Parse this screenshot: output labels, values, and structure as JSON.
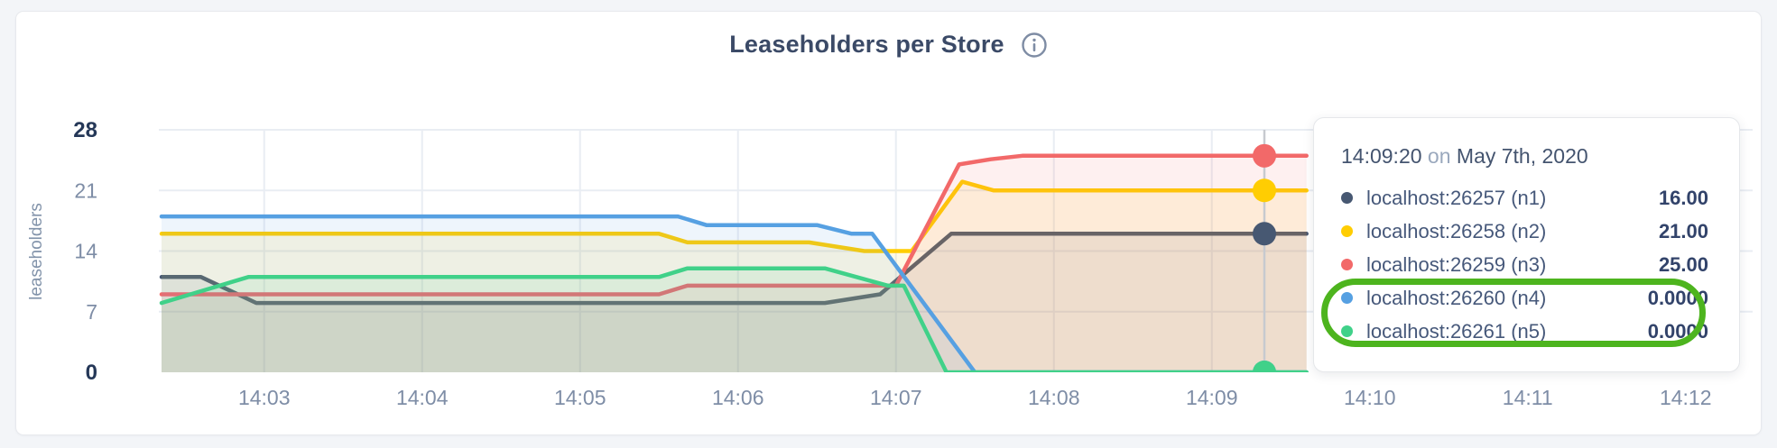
{
  "chart": {
    "title": "Leaseholders per Store",
    "info_icon": "info-circle"
  },
  "tooltip": {
    "time": "14:09:20",
    "on_word": "on",
    "date": "May 7th, 2020",
    "rows": [
      {
        "label": "localhost:26257 (n1)",
        "value": "16.00",
        "color": "#475872"
      },
      {
        "label": "localhost:26258 (n2)",
        "value": "21.00",
        "color": "#ffcd02"
      },
      {
        "label": "localhost:26259 (n3)",
        "value": "25.00",
        "color": "#f26969"
      },
      {
        "label": "localhost:26260 (n4)",
        "value": "0.0000",
        "color": "#56a0e2"
      },
      {
        "label": "localhost:26261 (n5)",
        "value": "0.0000",
        "color": "#40d189"
      }
    ],
    "annotation_color": "#4db41e"
  },
  "chart_data": {
    "type": "area",
    "title": "Leaseholders per Store",
    "ylabel": "leaseholders",
    "xlabel": "",
    "ylim": [
      0,
      28
    ],
    "y_ticks": [
      0,
      7,
      14,
      21,
      28
    ],
    "y_ticks_emphasized": [
      0,
      28
    ],
    "x_tick_labels": [
      "14:03",
      "14:04",
      "14:05",
      "14:06",
      "14:07",
      "14:08",
      "14:09",
      "14:10",
      "14:11",
      "14:12"
    ],
    "x_tick_minutes": [
      3,
      4,
      5,
      6,
      7,
      8,
      9,
      10,
      11,
      12
    ],
    "x_range_minutes": [
      2.333,
      12.42
    ],
    "hover_minute": 9.333,
    "grid": true,
    "legend_position": "tooltip-right",
    "colors": {
      "grid": "#e9edf3",
      "hover_line": "#c7cacf"
    },
    "series": [
      {
        "name": "localhost:26257 (n1)",
        "color": "#475872",
        "hover_value": 16,
        "points": [
          [
            2.35,
            11
          ],
          [
            2.6,
            11
          ],
          [
            2.95,
            8
          ],
          [
            6.55,
            8
          ],
          [
            6.9,
            9
          ],
          [
            7.35,
            16
          ],
          [
            9.6,
            16
          ]
        ]
      },
      {
        "name": "localhost:26258 (n2)",
        "color": "#ffcd02",
        "hover_value": 21,
        "points": [
          [
            2.35,
            16
          ],
          [
            5.5,
            16
          ],
          [
            5.68,
            15
          ],
          [
            6.45,
            15
          ],
          [
            6.8,
            14
          ],
          [
            7.1,
            14
          ],
          [
            7.42,
            22
          ],
          [
            7.62,
            21
          ],
          [
            9.6,
            21
          ]
        ]
      },
      {
        "name": "localhost:26259 (n3)",
        "color": "#f26969",
        "hover_value": 25,
        "points": [
          [
            2.35,
            9
          ],
          [
            5.5,
            9
          ],
          [
            5.68,
            10
          ],
          [
            7.0,
            10
          ],
          [
            7.4,
            24
          ],
          [
            7.6,
            24.6
          ],
          [
            7.8,
            25
          ],
          [
            9.6,
            25
          ]
        ]
      },
      {
        "name": "localhost:26260 (n4)",
        "color": "#56a0e2",
        "hover_value": 0,
        "points": [
          [
            2.35,
            18
          ],
          [
            5.62,
            18
          ],
          [
            5.8,
            17
          ],
          [
            6.5,
            17
          ],
          [
            6.72,
            16
          ],
          [
            6.85,
            16
          ],
          [
            7.5,
            0
          ],
          [
            9.6,
            0
          ]
        ]
      },
      {
        "name": "localhost:26261 (n5)",
        "color": "#40d189",
        "hover_value": 0,
        "points": [
          [
            2.35,
            8
          ],
          [
            2.9,
            11
          ],
          [
            5.5,
            11
          ],
          [
            5.68,
            12
          ],
          [
            6.55,
            12
          ],
          [
            6.95,
            10
          ],
          [
            7.05,
            10
          ],
          [
            7.32,
            0
          ],
          [
            9.6,
            0
          ]
        ]
      }
    ]
  }
}
